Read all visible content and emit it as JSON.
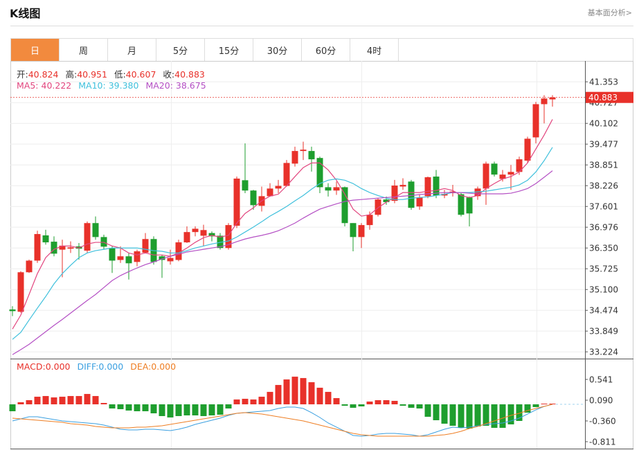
{
  "header": {
    "title": "K线图",
    "link": "基本面分析>"
  },
  "tabs": {
    "items": [
      "日",
      "周",
      "月",
      "5分",
      "15分",
      "30分",
      "60分",
      "4时"
    ],
    "active": 0
  },
  "chart_data": [
    {
      "type": "candlestick",
      "ohlc_info": [
        {
          "label": "开:",
          "value": "40.824"
        },
        {
          "label": "高:",
          "value": "40.951"
        },
        {
          "label": "低:",
          "value": "40.607"
        },
        {
          "label": "收:",
          "value": "40.883"
        }
      ],
      "up_color": "#e8312a",
      "down_color": "#1e9e2e",
      "open": [
        34.5,
        34.43,
        35.62,
        35.97,
        36.73,
        36.54,
        36.3,
        36.33,
        36.4,
        36.27,
        37.1,
        36.68,
        36.35,
        35.99,
        36.1,
        35.93,
        36.21,
        36.62,
        36.1,
        35.95,
        35.99,
        36.52,
        36.83,
        36.72,
        36.8,
        36.72,
        36.35,
        37.02,
        38.39,
        38.08,
        37.62,
        37.91,
        38.14,
        38.22,
        38.89,
        39.27,
        39.27,
        39.06,
        38.18,
        38.08,
        38.18,
        37.1,
        36.68,
        37.04,
        37.35,
        37.81,
        37.77,
        38.2,
        38.35,
        37.6,
        37.91,
        38.5,
        37.93,
        38.0,
        37.97,
        37.87,
        37.91,
        38.14,
        38.89,
        38.43,
        38.56,
        38.64,
        38.98,
        39.68,
        40.68,
        40.824
      ],
      "high": [
        34.6,
        35.65,
        36.0,
        36.87,
        36.9,
        36.7,
        36.6,
        36.55,
        36.5,
        37.15,
        37.3,
        36.75,
        36.4,
        36.4,
        36.2,
        36.3,
        36.8,
        36.7,
        36.15,
        36.3,
        36.6,
        37.0,
        37.0,
        37.05,
        36.85,
        36.8,
        37.1,
        38.5,
        39.5,
        38.1,
        38.2,
        38.3,
        38.4,
        39.0,
        39.4,
        39.55,
        39.4,
        39.1,
        38.3,
        38.35,
        38.2,
        37.1,
        37.1,
        37.45,
        37.85,
        37.9,
        38.4,
        38.45,
        38.4,
        37.95,
        38.5,
        38.7,
        38.1,
        38.25,
        38.0,
        37.9,
        38.2,
        38.95,
        38.95,
        38.7,
        38.85,
        39.1,
        39.7,
        40.75,
        40.95,
        40.951
      ],
      "low": [
        34.3,
        34.4,
        35.6,
        35.9,
        36.45,
        36.1,
        35.47,
        36.2,
        36.0,
        36.2,
        36.6,
        36.3,
        35.6,
        35.9,
        35.4,
        35.8,
        36.2,
        35.85,
        35.45,
        35.85,
        35.95,
        36.5,
        36.7,
        36.4,
        36.55,
        36.3,
        36.3,
        36.95,
        38.0,
        37.5,
        37.45,
        37.9,
        38.0,
        38.2,
        38.8,
        39.0,
        38.65,
        38.0,
        37.9,
        37.95,
        37.0,
        36.25,
        36.35,
        36.9,
        37.3,
        37.65,
        37.7,
        38.1,
        37.5,
        37.5,
        37.85,
        37.85,
        37.85,
        37.9,
        37.3,
        37.0,
        37.8,
        37.65,
        38.5,
        38.35,
        38.1,
        38.55,
        38.9,
        39.5,
        40.1,
        40.607
      ],
      "close": [
        34.45,
        35.62,
        35.97,
        36.77,
        36.52,
        36.18,
        36.42,
        36.37,
        36.33,
        37.1,
        36.68,
        36.39,
        35.97,
        36.1,
        35.89,
        36.25,
        36.62,
        35.93,
        35.99,
        36.05,
        36.52,
        36.83,
        36.93,
        36.89,
        36.7,
        36.35,
        37.04,
        38.44,
        38.08,
        37.64,
        37.91,
        38.14,
        38.22,
        38.91,
        39.27,
        39.31,
        39.02,
        38.18,
        38.08,
        38.18,
        37.1,
        36.68,
        37.04,
        37.35,
        37.81,
        37.73,
        38.23,
        38.25,
        37.56,
        37.87,
        38.48,
        37.93,
        37.98,
        38.05,
        37.35,
        37.39,
        38.14,
        38.89,
        38.56,
        38.56,
        38.64,
        39.02,
        39.64,
        40.68,
        40.85,
        40.883
      ],
      "series": [
        {
          "name": "MA5:",
          "last": "40.222",
          "color": "#e2457e",
          "values": [
            33.91,
            34.33,
            34.95,
            35.58,
            36.06,
            36.31,
            36.41,
            36.41,
            36.35,
            36.47,
            36.52,
            36.52,
            36.41,
            36.35,
            36.2,
            36.14,
            36.2,
            36.14,
            36.14,
            36.1,
            36.2,
            36.35,
            36.52,
            36.66,
            36.73,
            36.68,
            36.73,
            37.1,
            37.39,
            37.56,
            37.77,
            37.91,
            37.97,
            38.22,
            38.5,
            38.77,
            38.91,
            38.91,
            38.7,
            38.39,
            37.97,
            37.52,
            37.31,
            37.35,
            37.56,
            37.73,
            37.87,
            38.02,
            38.02,
            38.02,
            38.06,
            38.08,
            38.14,
            38.08,
            37.93,
            37.87,
            37.93,
            38.14,
            38.29,
            38.43,
            38.5,
            38.64,
            38.91,
            39.33,
            39.75,
            40.222
          ]
        },
        {
          "name": "MA10:",
          "last": "39.380",
          "color": "#3fc0dc",
          "values": [
            33.6,
            33.81,
            34.18,
            34.54,
            34.89,
            35.27,
            35.58,
            35.83,
            36.06,
            36.2,
            36.27,
            36.31,
            36.35,
            36.35,
            36.35,
            36.35,
            36.31,
            36.27,
            36.25,
            36.2,
            36.2,
            36.27,
            36.35,
            36.41,
            36.47,
            36.52,
            36.56,
            36.68,
            36.83,
            36.98,
            37.14,
            37.31,
            37.45,
            37.6,
            37.77,
            37.93,
            38.12,
            38.29,
            38.39,
            38.43,
            38.39,
            38.29,
            38.14,
            38.02,
            37.93,
            37.85,
            37.81,
            37.81,
            37.85,
            37.87,
            37.89,
            37.93,
            37.97,
            38.02,
            38.02,
            38.02,
            38.04,
            38.06,
            38.1,
            38.14,
            38.18,
            38.25,
            38.39,
            38.64,
            38.98,
            39.38
          ]
        },
        {
          "name": "MA20:",
          "last": "38.675",
          "color": "#b44fc4",
          "values": [
            33.14,
            33.29,
            33.45,
            33.64,
            33.83,
            34.02,
            34.2,
            34.39,
            34.58,
            34.77,
            34.95,
            35.16,
            35.37,
            35.52,
            35.64,
            35.75,
            35.85,
            35.93,
            36.02,
            36.1,
            36.16,
            36.23,
            36.27,
            36.31,
            36.35,
            36.39,
            36.45,
            36.54,
            36.62,
            36.68,
            36.73,
            36.79,
            36.87,
            36.98,
            37.1,
            37.25,
            37.39,
            37.52,
            37.6,
            37.68,
            37.75,
            37.79,
            37.81,
            37.83,
            37.85,
            37.87,
            37.89,
            37.91,
            37.93,
            37.96,
            37.98,
            38.0,
            38.02,
            38.02,
            38.02,
            38.0,
            37.98,
            37.98,
            37.98,
            37.98,
            38.0,
            38.06,
            38.14,
            38.29,
            38.48,
            38.675
          ]
        }
      ],
      "last_price": 40.883,
      "ylim": [
        33.02,
        41.94
      ],
      "yticks": [
        41.353,
        40.727,
        40.102,
        39.477,
        38.851,
        38.226,
        37.601,
        36.976,
        {
          "value": 36.35,
          "label": "36.350"
        },
        35.725,
        {
          "value": 35.1,
          "label": "35.100"
        },
        34.474,
        33.849,
        33.224
      ],
      "grid": true
    },
    {
      "type": "macd",
      "up_color": "#e8312a",
      "down_color": "#1e9e2e",
      "series": [
        {
          "name": "MACD:",
          "last": "0.000",
          "color": "#e8312a",
          "style": "bar",
          "values": [
            -0.15,
            0.045,
            0.09,
            0.165,
            0.18,
            0.15,
            0.165,
            0.18,
            0.18,
            0.225,
            0.18,
            0.03,
            -0.09,
            -0.105,
            -0.135,
            -0.15,
            -0.15,
            -0.195,
            -0.255,
            -0.285,
            -0.255,
            -0.24,
            -0.24,
            -0.255,
            -0.24,
            -0.225,
            -0.09,
            0.105,
            0.12,
            0.105,
            0.165,
            0.27,
            0.42,
            0.54,
            0.6,
            0.57,
            0.48,
            0.36,
            0.27,
            0.135,
            -0.03,
            -0.075,
            -0.045,
            0.06,
            0.09,
            0.09,
            0.075,
            -0.03,
            -0.075,
            -0.09,
            -0.27,
            -0.345,
            -0.42,
            -0.465,
            -0.51,
            -0.525,
            -0.48,
            -0.465,
            -0.51,
            -0.51,
            -0.435,
            -0.36,
            -0.18,
            -0.06,
            0.015,
            0.015
          ]
        },
        {
          "name": "DIFF:",
          "last": "0.000",
          "color": "#3a9fe0",
          "style": "line",
          "values": [
            -0.36,
            -0.315,
            -0.27,
            -0.27,
            -0.3,
            -0.33,
            -0.36,
            -0.375,
            -0.39,
            -0.405,
            -0.42,
            -0.45,
            -0.495,
            -0.54,
            -0.555,
            -0.555,
            -0.54,
            -0.54,
            -0.555,
            -0.57,
            -0.54,
            -0.495,
            -0.435,
            -0.39,
            -0.345,
            -0.3,
            -0.24,
            -0.195,
            -0.18,
            -0.165,
            -0.15,
            -0.135,
            -0.09,
            -0.06,
            -0.06,
            -0.09,
            -0.18,
            -0.285,
            -0.405,
            -0.495,
            -0.585,
            -0.675,
            -0.69,
            -0.675,
            -0.645,
            -0.63,
            -0.63,
            -0.645,
            -0.66,
            -0.69,
            -0.66,
            -0.6,
            -0.54,
            -0.495,
            -0.51,
            -0.495,
            -0.465,
            -0.435,
            -0.42,
            -0.405,
            -0.36,
            -0.3,
            -0.21,
            -0.12,
            -0.045,
            0
          ]
        },
        {
          "name": "DEA:",
          "last": "0.000",
          "color": "#ee7d22",
          "style": "line",
          "values": [
            -0.3,
            -0.315,
            -0.33,
            -0.345,
            -0.36,
            -0.375,
            -0.39,
            -0.42,
            -0.435,
            -0.45,
            -0.48,
            -0.495,
            -0.51,
            -0.51,
            -0.51,
            -0.495,
            -0.495,
            -0.48,
            -0.465,
            -0.435,
            -0.405,
            -0.375,
            -0.345,
            -0.315,
            -0.285,
            -0.255,
            -0.225,
            -0.195,
            -0.18,
            -0.195,
            -0.21,
            -0.24,
            -0.27,
            -0.3,
            -0.33,
            -0.36,
            -0.405,
            -0.45,
            -0.495,
            -0.54,
            -0.585,
            -0.63,
            -0.66,
            -0.675,
            -0.69,
            -0.69,
            -0.69,
            -0.69,
            -0.69,
            -0.69,
            -0.69,
            -0.675,
            -0.66,
            -0.63,
            -0.585,
            -0.525,
            -0.48,
            -0.42,
            -0.36,
            -0.3,
            -0.24,
            -0.195,
            -0.135,
            -0.09,
            -0.045,
            0
          ]
        }
      ],
      "ylim": [
        -0.961,
        0.992
      ],
      "yticks": [
        0.541,
        {
          "value": 0.09,
          "label": "0.090"
        },
        {
          "value": -0.36,
          "label": "-0.360"
        },
        -0.811
      ],
      "grid": false
    }
  ]
}
